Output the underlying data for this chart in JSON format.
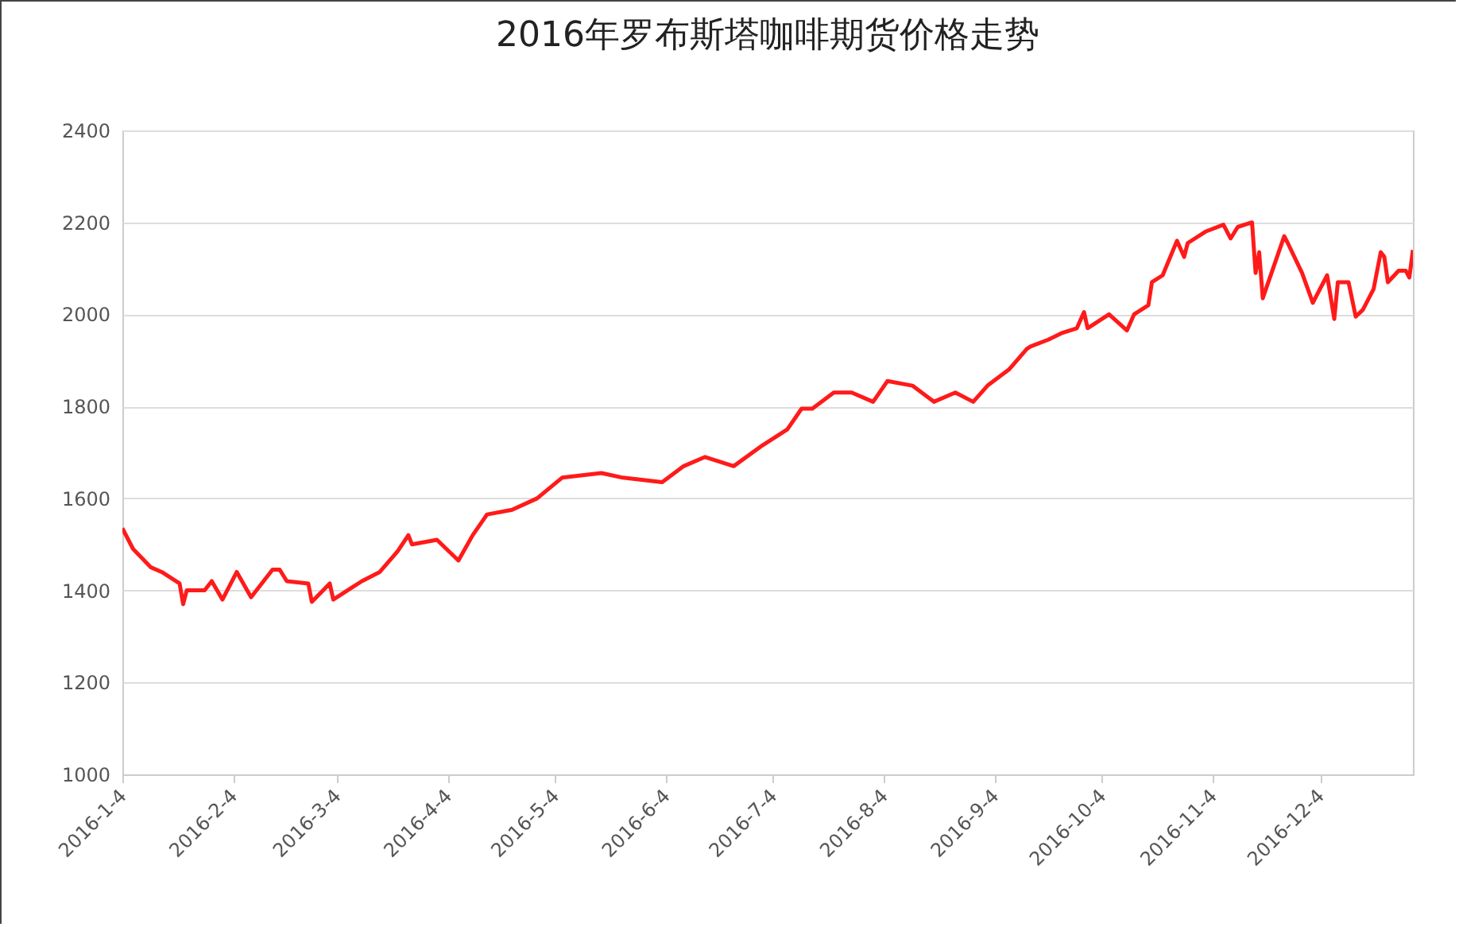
{
  "chart_data": {
    "type": "line",
    "title": "2016年罗布斯塔咖啡期货价格走势",
    "x": [
      "2016-01-04",
      "2016-01-07",
      "2016-01-12",
      "2016-01-15",
      "2016-01-20",
      "2016-01-21",
      "2016-01-22",
      "2016-01-27",
      "2016-01-29",
      "2016-02-01",
      "2016-02-05",
      "2016-02-09",
      "2016-02-15",
      "2016-02-17",
      "2016-02-19",
      "2016-02-25",
      "2016-02-26",
      "2016-03-02",
      "2016-03-03",
      "2016-03-08",
      "2016-03-11",
      "2016-03-16",
      "2016-03-21",
      "2016-03-24",
      "2016-03-25",
      "2016-04-01",
      "2016-04-07",
      "2016-04-11",
      "2016-04-15",
      "2016-04-22",
      "2016-04-29",
      "2016-05-06",
      "2016-05-17",
      "2016-05-23",
      "2016-06-03",
      "2016-06-09",
      "2016-06-15",
      "2016-06-23",
      "2016-07-01",
      "2016-07-08",
      "2016-07-12",
      "2016-07-15",
      "2016-07-21",
      "2016-07-26",
      "2016-08-01",
      "2016-08-05",
      "2016-08-12",
      "2016-08-18",
      "2016-08-24",
      "2016-08-29",
      "2016-09-02",
      "2016-09-08",
      "2016-09-13",
      "2016-09-14",
      "2016-09-19",
      "2016-09-23",
      "2016-09-27",
      "2016-09-29",
      "2016-09-30",
      "2016-10-06",
      "2016-10-11",
      "2016-10-13",
      "2016-10-17",
      "2016-10-18",
      "2016-10-21",
      "2016-10-25",
      "2016-10-27",
      "2016-10-28",
      "2016-11-02",
      "2016-11-07",
      "2016-11-09",
      "2016-11-11",
      "2016-11-15",
      "2016-11-16",
      "2016-11-17",
      "2016-11-18",
      "2016-11-24",
      "2016-11-25",
      "2016-11-29",
      "2016-12-02",
      "2016-12-06",
      "2016-12-08",
      "2016-12-09",
      "2016-12-12",
      "2016-12-14",
      "2016-12-16",
      "2016-12-19",
      "2016-12-21",
      "2016-12-22",
      "2016-12-23",
      "2016-12-26",
      "2016-12-28",
      "2016-12-29",
      "2016-12-30"
    ],
    "series": [
      {
        "color": "#ff1a1a",
        "values": [
          1535,
          1490,
          1450,
          1440,
          1415,
          1370,
          1400,
          1400,
          1420,
          1380,
          1440,
          1385,
          1445,
          1445,
          1420,
          1415,
          1375,
          1415,
          1380,
          1405,
          1420,
          1440,
          1485,
          1520,
          1500,
          1510,
          1465,
          1520,
          1565,
          1575,
          1600,
          1645,
          1655,
          1645,
          1635,
          1670,
          1690,
          1670,
          1715,
          1750,
          1795,
          1795,
          1830,
          1830,
          1810,
          1855,
          1845,
          1810,
          1830,
          1810,
          1845,
          1880,
          1925,
          1930,
          1945,
          1960,
          1970,
          2005,
          1970,
          2000,
          1965,
          2000,
          2020,
          2070,
          2085,
          2160,
          2125,
          2155,
          2180,
          2195,
          2165,
          2190,
          2200,
          2090,
          2135,
          2035,
          2170,
          2155,
          2090,
          2025,
          2085,
          1990,
          2070,
          2070,
          1995,
          2010,
          2055,
          2135,
          2125,
          2070,
          2095,
          2095,
          2080,
          2140
        ]
      }
    ],
    "xlim": [
      "2016-01-04",
      "2016-12-30"
    ],
    "xticks": [
      {
        "value": "2016-01-04",
        "label": "2016-1-4"
      },
      {
        "value": "2016-02-04",
        "label": "2016-2-4"
      },
      {
        "value": "2016-03-04",
        "label": "2016-3-4"
      },
      {
        "value": "2016-04-04",
        "label": "2016-4-4"
      },
      {
        "value": "2016-05-04",
        "label": "2016-5-4"
      },
      {
        "value": "2016-06-04",
        "label": "2016-6-4"
      },
      {
        "value": "2016-07-04",
        "label": "2016-7-4"
      },
      {
        "value": "2016-08-04",
        "label": "2016-8-4"
      },
      {
        "value": "2016-09-04",
        "label": "2016-9-4"
      },
      {
        "value": "2016-10-04",
        "label": "2016-10-4"
      },
      {
        "value": "2016-11-04",
        "label": "2016-11-4"
      },
      {
        "value": "2016-12-04",
        "label": "2016-12-4"
      }
    ],
    "ylim": [
      1000,
      2400
    ],
    "yticks": [
      1000,
      1200,
      1400,
      1600,
      1800,
      2000,
      2200,
      2400
    ],
    "grid": "y",
    "marker": "none",
    "line_style": "solid",
    "legend": false
  }
}
